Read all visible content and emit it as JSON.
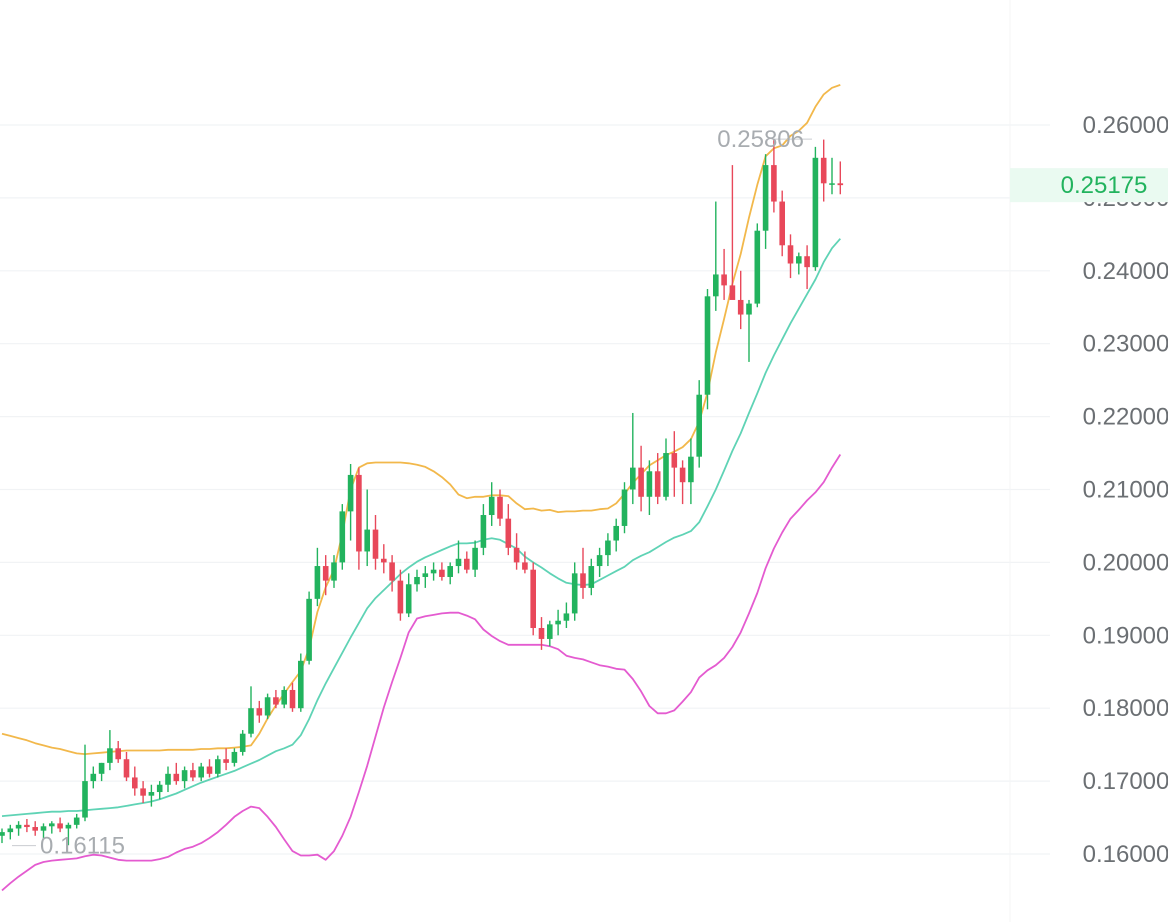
{
  "chart_data": {
    "type": "candlestick",
    "y_axis_ticks": [
      "0.26000",
      "0.25000",
      "0.24000",
      "0.23000",
      "0.22000",
      "0.21000",
      "0.20000",
      "0.19000",
      "0.18000",
      "0.17000",
      "0.16000"
    ],
    "ylim": [
      0.1555,
      0.2665
    ],
    "grid": true,
    "current_price": {
      "label": "0.25175",
      "value": 0.25175
    },
    "annotations": [
      {
        "label": "0.25806",
        "value": 0.25806,
        "kind": "high"
      },
      {
        "label": "0.16115",
        "value": 0.16115,
        "kind": "low"
      }
    ],
    "colors": {
      "up": "#22b35e",
      "down": "#e8485a",
      "upper_band": "#f2b84b",
      "middle_band": "#5fd3b5",
      "lower_band": "#e45bd0",
      "grid": "#f1f3f5",
      "axis_text": "#6b6f73"
    },
    "candles": [
      [
        0.1625,
        0.1635,
        0.1615,
        0.163
      ],
      [
        0.163,
        0.164,
        0.162,
        0.1635
      ],
      [
        0.1635,
        0.1645,
        0.1625,
        0.164
      ],
      [
        0.164,
        0.1648,
        0.163,
        0.1637
      ],
      [
        0.1637,
        0.1645,
        0.1625,
        0.1632
      ],
      [
        0.1632,
        0.1642,
        0.162,
        0.1638
      ],
      [
        0.1638,
        0.1645,
        0.1628,
        0.1642
      ],
      [
        0.1642,
        0.165,
        0.163,
        0.1635
      ],
      [
        0.1635,
        0.1643,
        0.1612,
        0.164
      ],
      [
        0.164,
        0.1655,
        0.1635,
        0.165
      ],
      [
        0.165,
        0.175,
        0.1645,
        0.17
      ],
      [
        0.17,
        0.172,
        0.169,
        0.171
      ],
      [
        0.171,
        0.1725,
        0.17,
        0.1725
      ],
      [
        0.1725,
        0.177,
        0.1715,
        0.1745
      ],
      [
        0.1745,
        0.1755,
        0.1725,
        0.173
      ],
      [
        0.173,
        0.174,
        0.17,
        0.1705
      ],
      [
        0.1705,
        0.172,
        0.168,
        0.169
      ],
      [
        0.169,
        0.17,
        0.167,
        0.168
      ],
      [
        0.168,
        0.1695,
        0.1665,
        0.1685
      ],
      [
        0.1685,
        0.17,
        0.1675,
        0.1695
      ],
      [
        0.1695,
        0.172,
        0.1685,
        0.171
      ],
      [
        0.171,
        0.1725,
        0.1695,
        0.17
      ],
      [
        0.17,
        0.172,
        0.169,
        0.1715
      ],
      [
        0.1715,
        0.1725,
        0.17,
        0.1705
      ],
      [
        0.1705,
        0.1725,
        0.17,
        0.172
      ],
      [
        0.172,
        0.173,
        0.1705,
        0.171
      ],
      [
        0.171,
        0.1735,
        0.1705,
        0.173
      ],
      [
        0.173,
        0.1745,
        0.1715,
        0.1725
      ],
      [
        0.1725,
        0.1745,
        0.172,
        0.174
      ],
      [
        0.174,
        0.177,
        0.1735,
        0.1765
      ],
      [
        0.1765,
        0.183,
        0.176,
        0.18
      ],
      [
        0.18,
        0.181,
        0.178,
        0.179
      ],
      [
        0.179,
        0.182,
        0.1785,
        0.1815
      ],
      [
        0.1815,
        0.1825,
        0.18,
        0.1805
      ],
      [
        0.1805,
        0.183,
        0.18,
        0.1825
      ],
      [
        0.1825,
        0.1835,
        0.1795,
        0.18
      ],
      [
        0.18,
        0.1875,
        0.1795,
        0.1865
      ],
      [
        0.1865,
        0.196,
        0.186,
        0.195
      ],
      [
        0.195,
        0.202,
        0.194,
        0.1995
      ],
      [
        0.1995,
        0.201,
        0.1955,
        0.1975
      ],
      [
        0.1975,
        0.201,
        0.1965,
        0.2
      ],
      [
        0.2,
        0.208,
        0.199,
        0.207
      ],
      [
        0.207,
        0.2135,
        0.203,
        0.212
      ],
      [
        0.212,
        0.213,
        0.199,
        0.2015
      ],
      [
        0.2015,
        0.21,
        0.1995,
        0.2045
      ],
      [
        0.2045,
        0.2065,
        0.199,
        0.2005
      ],
      [
        0.2005,
        0.2025,
        0.1985,
        0.2
      ],
      [
        0.2,
        0.201,
        0.196,
        0.1975
      ],
      [
        0.1975,
        0.199,
        0.192,
        0.193
      ],
      [
        0.193,
        0.1985,
        0.1925,
        0.197
      ],
      [
        0.197,
        0.199,
        0.196,
        0.198
      ],
      [
        0.198,
        0.1995,
        0.1965,
        0.1985
      ],
      [
        0.1985,
        0.2,
        0.1975,
        0.199
      ],
      [
        0.199,
        0.2,
        0.1975,
        0.198
      ],
      [
        0.198,
        0.2,
        0.197,
        0.1995
      ],
      [
        0.1995,
        0.203,
        0.1985,
        0.2005
      ],
      [
        0.2005,
        0.2015,
        0.1985,
        0.199
      ],
      [
        0.199,
        0.203,
        0.198,
        0.202
      ],
      [
        0.202,
        0.208,
        0.201,
        0.2065
      ],
      [
        0.2065,
        0.211,
        0.205,
        0.209
      ],
      [
        0.209,
        0.21,
        0.205,
        0.206
      ],
      [
        0.206,
        0.208,
        0.201,
        0.202
      ],
      [
        0.202,
        0.204,
        0.199,
        0.2
      ],
      [
        0.2,
        0.2015,
        0.1985,
        0.199
      ],
      [
        0.199,
        0.2,
        0.19,
        0.191
      ],
      [
        0.191,
        0.1925,
        0.188,
        0.1895
      ],
      [
        0.1895,
        0.192,
        0.1885,
        0.1915
      ],
      [
        0.1915,
        0.1935,
        0.19,
        0.192
      ],
      [
        0.192,
        0.1945,
        0.191,
        0.193
      ],
      [
        0.193,
        0.2,
        0.192,
        0.1985
      ],
      [
        0.1985,
        0.202,
        0.195,
        0.1965
      ],
      [
        0.1965,
        0.2005,
        0.1955,
        0.1995
      ],
      [
        0.1995,
        0.202,
        0.198,
        0.201
      ],
      [
        0.201,
        0.204,
        0.1995,
        0.203
      ],
      [
        0.203,
        0.206,
        0.2015,
        0.205
      ],
      [
        0.205,
        0.211,
        0.204,
        0.21
      ],
      [
        0.21,
        0.2205,
        0.208,
        0.213
      ],
      [
        0.213,
        0.216,
        0.207,
        0.209
      ],
      [
        0.209,
        0.214,
        0.2065,
        0.2125
      ],
      [
        0.2125,
        0.215,
        0.208,
        0.209
      ],
      [
        0.209,
        0.217,
        0.2085,
        0.215
      ],
      [
        0.215,
        0.218,
        0.209,
        0.213
      ],
      [
        0.213,
        0.214,
        0.208,
        0.211
      ],
      [
        0.211,
        0.217,
        0.208,
        0.2145
      ],
      [
        0.2145,
        0.225,
        0.213,
        0.223
      ],
      [
        0.223,
        0.2375,
        0.221,
        0.2365
      ],
      [
        0.2365,
        0.2495,
        0.2345,
        0.2395
      ],
      [
        0.2395,
        0.243,
        0.236,
        0.238
      ],
      [
        0.238,
        0.2545,
        0.237,
        0.236
      ],
      [
        0.236,
        0.24,
        0.232,
        0.234
      ],
      [
        0.234,
        0.236,
        0.2275,
        0.2355
      ],
      [
        0.2355,
        0.2465,
        0.235,
        0.2455
      ],
      [
        0.2455,
        0.256,
        0.243,
        0.2545
      ],
      [
        0.2545,
        0.258,
        0.248,
        0.2495
      ],
      [
        0.2495,
        0.251,
        0.242,
        0.2435
      ],
      [
        0.2435,
        0.245,
        0.239,
        0.241
      ],
      [
        0.241,
        0.2425,
        0.2395,
        0.242
      ],
      [
        0.242,
        0.2435,
        0.2375,
        0.2405
      ],
      [
        0.2405,
        0.257,
        0.24,
        0.2555
      ],
      [
        0.2555,
        0.258,
        0.2495,
        0.252
      ],
      [
        0.252,
        0.2555,
        0.2505,
        0.252
      ],
      [
        0.252,
        0.255,
        0.2505,
        0.25175
      ]
    ],
    "bollinger_bands": {
      "upper": [
        0.1765,
        0.1762,
        0.1759,
        0.1756,
        0.1752,
        0.1749,
        0.1746,
        0.1744,
        0.1741,
        0.1738,
        0.1737,
        0.1738,
        0.1739,
        0.174,
        0.1741,
        0.1742,
        0.1742,
        0.1742,
        0.1742,
        0.1742,
        0.1743,
        0.1743,
        0.1743,
        0.1743,
        0.1744,
        0.1744,
        0.1745,
        0.1745,
        0.1746,
        0.1747,
        0.1749,
        0.1765,
        0.1786,
        0.1804,
        0.182,
        0.1836,
        0.1851,
        0.1882,
        0.1932,
        0.1966,
        0.199,
        0.2039,
        0.21,
        0.213,
        0.2136,
        0.2137,
        0.2137,
        0.2137,
        0.2137,
        0.2136,
        0.2134,
        0.2131,
        0.2125,
        0.2117,
        0.2107,
        0.2093,
        0.2088,
        0.209,
        0.209,
        0.2092,
        0.2092,
        0.2091,
        0.2081,
        0.2073,
        0.2074,
        0.2071,
        0.2072,
        0.2069,
        0.207,
        0.207,
        0.2071,
        0.2071,
        0.2073,
        0.2074,
        0.2081,
        0.2094,
        0.2109,
        0.2121,
        0.2133,
        0.214,
        0.2147,
        0.2152,
        0.2158,
        0.2169,
        0.2193,
        0.2233,
        0.2288,
        0.2334,
        0.2382,
        0.2423,
        0.2473,
        0.2518,
        0.2557,
        0.2568,
        0.2572,
        0.2585,
        0.2592,
        0.2603,
        0.2625,
        0.2642,
        0.2651,
        0.2655
      ],
      "middle": [
        0.1652,
        0.1653,
        0.1654,
        0.1655,
        0.1656,
        0.1657,
        0.1658,
        0.1658,
        0.1659,
        0.1659,
        0.166,
        0.1661,
        0.1662,
        0.1663,
        0.1664,
        0.1666,
        0.1668,
        0.167,
        0.1672,
        0.1675,
        0.1679,
        0.1683,
        0.1688,
        0.1693,
        0.1698,
        0.1702,
        0.1706,
        0.171,
        0.1714,
        0.1719,
        0.1724,
        0.1729,
        0.1735,
        0.1741,
        0.1745,
        0.175,
        0.1763,
        0.1785,
        0.1811,
        0.1834,
        0.1855,
        0.1876,
        0.1897,
        0.1917,
        0.1937,
        0.1951,
        0.1962,
        0.1973,
        0.1984,
        0.1993,
        0.2001,
        0.2007,
        0.2012,
        0.2017,
        0.2022,
        0.2026,
        0.2026,
        0.2027,
        0.2031,
        0.2033,
        0.2031,
        0.2025,
        0.2019,
        0.2008,
        0.2,
        0.1993,
        0.1985,
        0.1978,
        0.1972,
        0.197,
        0.1969,
        0.197,
        0.1976,
        0.1982,
        0.1988,
        0.1994,
        0.2003,
        0.2009,
        0.2014,
        0.2021,
        0.2028,
        0.2034,
        0.2038,
        0.2043,
        0.2055,
        0.2077,
        0.21,
        0.2126,
        0.2153,
        0.2177,
        0.2205,
        0.2232,
        0.226,
        0.2284,
        0.2306,
        0.2328,
        0.2348,
        0.2368,
        0.2388,
        0.2412,
        0.2431,
        0.2444
      ],
      "lower": [
        0.155,
        0.156,
        0.1569,
        0.1577,
        0.1585,
        0.1589,
        0.1591,
        0.1592,
        0.1593,
        0.1594,
        0.1597,
        0.1599,
        0.1598,
        0.1595,
        0.1592,
        0.1591,
        0.1591,
        0.1591,
        0.1591,
        0.1593,
        0.1596,
        0.1602,
        0.1607,
        0.161,
        0.1615,
        0.1622,
        0.163,
        0.164,
        0.1651,
        0.1659,
        0.1665,
        0.1663,
        0.1651,
        0.1637,
        0.162,
        0.1604,
        0.1598,
        0.1598,
        0.1599,
        0.1592,
        0.1604,
        0.1625,
        0.1651,
        0.1685,
        0.1721,
        0.1761,
        0.1801,
        0.1836,
        0.1869,
        0.1904,
        0.1923,
        0.1926,
        0.1928,
        0.193,
        0.1931,
        0.1931,
        0.1927,
        0.1922,
        0.1908,
        0.1899,
        0.1892,
        0.1887,
        0.1887,
        0.1887,
        0.1887,
        0.1887,
        0.1885,
        0.1881,
        0.1872,
        0.1869,
        0.1867,
        0.1863,
        0.1859,
        0.1857,
        0.1854,
        0.1853,
        0.184,
        0.1823,
        0.1803,
        0.1793,
        0.1793,
        0.1797,
        0.1809,
        0.1822,
        0.1842,
        0.1852,
        0.1859,
        0.1869,
        0.1884,
        0.1904,
        0.193,
        0.1958,
        0.1992,
        0.2019,
        0.2041,
        0.206,
        0.2072,
        0.2085,
        0.2096,
        0.211,
        0.213,
        0.2148
      ]
    }
  }
}
